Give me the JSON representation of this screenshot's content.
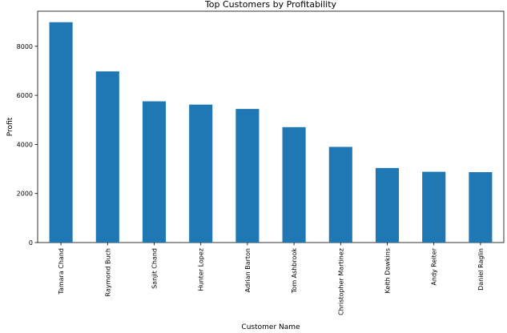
{
  "chart_data": {
    "type": "bar",
    "title": "Top Customers by Profitability",
    "xlabel": "Customer Name",
    "ylabel": "Profit",
    "categories": [
      "Tamara Chand",
      "Raymond Buch",
      "Sanjit Chand",
      "Hunter Lopez",
      "Adrian Barton",
      "Tom Ashbrook",
      "Christopher Martinez",
      "Keith Dawkins",
      "Andy Reiter",
      "Daniel Raglin"
    ],
    "values": [
      8981,
      6977,
      5757,
      5623,
      5445,
      4704,
      3900,
      3039,
      2885,
      2870
    ],
    "ylim": [
      0,
      9430
    ],
    "yticks": [
      0,
      2000,
      4000,
      6000,
      8000
    ],
    "bar_color": "#1f77b4",
    "grid": false,
    "legend": "none"
  }
}
